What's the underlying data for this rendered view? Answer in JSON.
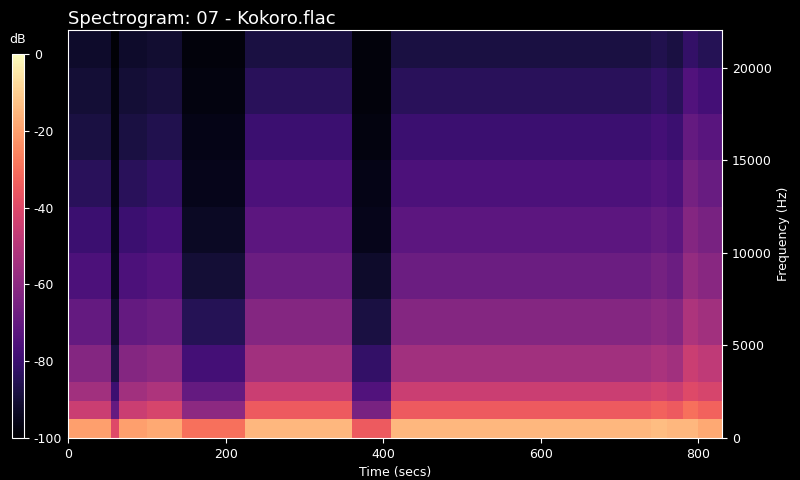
{
  "chart_data": {
    "type": "heatmap",
    "title": "Spectrogram: 07 - Kokoro.flac",
    "x_label": "Time (secs)",
    "y_label": "Frequency (Hz)",
    "xlim": [
      0,
      830
    ],
    "xticks": [
      0,
      200,
      400,
      600,
      800
    ],
    "ylim": [
      0,
      22050
    ],
    "yticks": [
      0,
      5000,
      10000,
      15000,
      20000
    ],
    "color": "magma",
    "time_edges": [
      0,
      30,
      55,
      65,
      100,
      145,
      185,
      225,
      260,
      300,
      340,
      360,
      385,
      410,
      450,
      500,
      550,
      600,
      650,
      700,
      740,
      760,
      780,
      800,
      830
    ],
    "frequency_edges": [
      0,
      1000,
      2000,
      3000,
      5000,
      7500,
      10000,
      12500,
      15000,
      17500,
      20000,
      22050
    ],
    "cells": [
      [
        -20,
        -20,
        -40,
        -20,
        -18,
        -30,
        -30,
        -15,
        -15,
        -15,
        -15,
        -35,
        -35,
        -15,
        -15,
        -15,
        -15,
        -15,
        -15,
        -15,
        -14,
        -15,
        -15,
        -18
      ],
      [
        -45,
        -45,
        -70,
        -45,
        -42,
        -60,
        -60,
        -35,
        -35,
        -35,
        -35,
        -65,
        -65,
        -35,
        -35,
        -35,
        -35,
        -35,
        -35,
        -35,
        -33,
        -35,
        -30,
        -33
      ],
      [
        -55,
        -55,
        -80,
        -55,
        -52,
        -70,
        -70,
        -45,
        -45,
        -45,
        -45,
        -75,
        -75,
        -45,
        -45,
        -45,
        -45,
        -45,
        -45,
        -45,
        -43,
        -45,
        -40,
        -42
      ],
      [
        -62,
        -62,
        -88,
        -62,
        -60,
        -78,
        -78,
        -55,
        -55,
        -55,
        -55,
        -82,
        -82,
        -55,
        -55,
        -55,
        -55,
        -55,
        -55,
        -55,
        -53,
        -55,
        -45,
        -48
      ],
      [
        -70,
        -70,
        -92,
        -70,
        -68,
        -85,
        -85,
        -62,
        -62,
        -62,
        -62,
        -88,
        -88,
        -62,
        -62,
        -62,
        -62,
        -62,
        -62,
        -62,
        -60,
        -62,
        -52,
        -55
      ],
      [
        -76,
        -76,
        -95,
        -76,
        -74,
        -90,
        -90,
        -68,
        -68,
        -68,
        -68,
        -92,
        -92,
        -68,
        -68,
        -68,
        -68,
        -68,
        -68,
        -68,
        -66,
        -68,
        -58,
        -61
      ],
      [
        -80,
        -80,
        -96,
        -80,
        -78,
        -93,
        -93,
        -72,
        -72,
        -72,
        -72,
        -95,
        -95,
        -72,
        -72,
        -72,
        -72,
        -72,
        -72,
        -72,
        -70,
        -72,
        -62,
        -65
      ],
      [
        -84,
        -84,
        -97,
        -84,
        -82,
        -95,
        -95,
        -76,
        -76,
        -76,
        -76,
        -96,
        -96,
        -76,
        -76,
        -76,
        -76,
        -76,
        -76,
        -76,
        -74,
        -76,
        -66,
        -69
      ],
      [
        -88,
        -88,
        -98,
        -88,
        -86,
        -96,
        -96,
        -80,
        -80,
        -80,
        -80,
        -97,
        -97,
        -80,
        -80,
        -80,
        -80,
        -80,
        -80,
        -80,
        -78,
        -80,
        -70,
        -73
      ],
      [
        -90,
        -90,
        -98,
        -90,
        -89,
        -97,
        -97,
        -84,
        -84,
        -84,
        -84,
        -98,
        -98,
        -84,
        -84,
        -84,
        -84,
        -84,
        -84,
        -84,
        -82,
        -84,
        -75,
        -78
      ],
      [
        -92,
        -92,
        -99,
        -92,
        -91,
        -98,
        -98,
        -88,
        -88,
        -88,
        -88,
        -98,
        -98,
        -88,
        -88,
        -88,
        -88,
        -88,
        -88,
        -88,
        -86,
        -88,
        -82,
        -85
      ]
    ],
    "colorbar": {
      "label": "dB",
      "range": [
        -100,
        0
      ],
      "ticks": [
        0,
        -20,
        -40,
        -60,
        -80,
        -100
      ]
    }
  }
}
